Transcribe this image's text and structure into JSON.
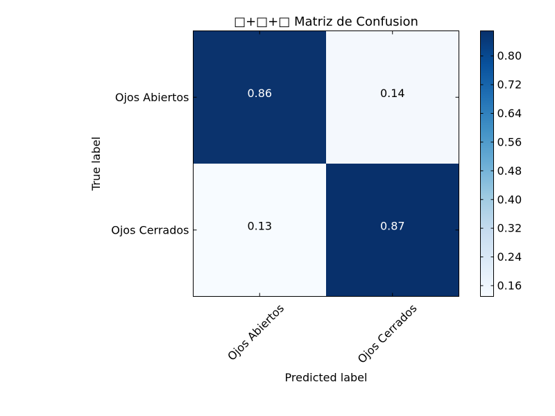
{
  "chart_data": {
    "type": "heatmap",
    "title": "□+□+□ Matriz de Confusion",
    "xlabel": "Predicted label",
    "ylabel": "True label",
    "x_categories": [
      "Ojos Abiertos",
      "Ojos Cerrados"
    ],
    "y_categories": [
      "Ojos Abiertos",
      "Ojos Cerrados"
    ],
    "values": [
      [
        0.86,
        0.14
      ],
      [
        0.13,
        0.87
      ]
    ],
    "cell_labels": [
      [
        "0.86",
        "0.14"
      ],
      [
        "0.13",
        "0.87"
      ]
    ],
    "colormap": "Blues",
    "color_min": "#f7fbff",
    "color_max": "#08306b",
    "colorbar": {
      "range": [
        0.13,
        0.87
      ],
      "ticks": [
        "0.16",
        "0.24",
        "0.32",
        "0.40",
        "0.48",
        "0.56",
        "0.64",
        "0.72",
        "0.80"
      ]
    }
  }
}
